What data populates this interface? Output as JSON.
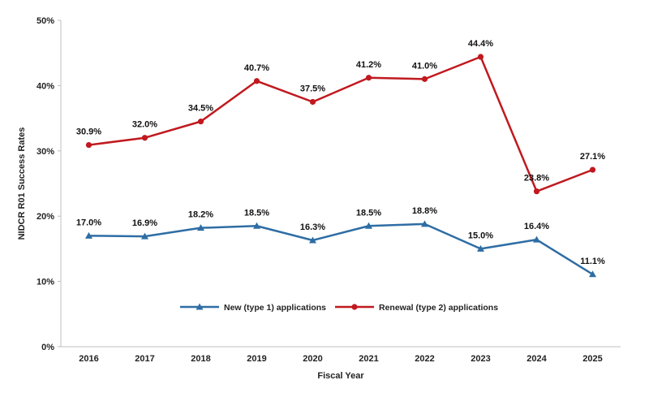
{
  "chart_data": {
    "type": "line",
    "xlabel": "Fiscal Year",
    "ylabel": "NIDCR R01 Success Rates",
    "ylim": [
      0,
      50
    ],
    "yticks": [
      0,
      10,
      20,
      30,
      40,
      50
    ],
    "ytick_labels": [
      "0%",
      "10%",
      "20%",
      "30%",
      "40%",
      "50%"
    ],
    "categories": [
      "2016",
      "2017",
      "2018",
      "2019",
      "2020",
      "2021",
      "2022",
      "2023",
      "2024",
      "2025"
    ],
    "grid": false,
    "legend_position": "bottom-center",
    "series": [
      {
        "name": "New (type 1) applications",
        "color": "#2E6DA4",
        "marker": "triangle",
        "values": [
          17.0,
          16.9,
          18.2,
          18.5,
          16.3,
          18.5,
          18.8,
          15.0,
          16.4,
          11.1
        ],
        "labels": [
          "17.0%",
          "16.9%",
          "18.2%",
          "18.5%",
          "16.3%",
          "18.5%",
          "18.8%",
          "15.0%",
          "16.4%",
          "11.1%"
        ]
      },
      {
        "name": "Renewal (type 2) applications",
        "color": "#C0191F",
        "marker": "circle",
        "values": [
          30.9,
          32.0,
          34.5,
          40.7,
          37.5,
          41.2,
          41.0,
          44.4,
          23.8,
          27.1
        ],
        "labels": [
          "30.9%",
          "32.0%",
          "34.5%",
          "40.7%",
          "37.5%",
          "41.2%",
          "41.0%",
          "44.4%",
          "23.8%",
          "27.1%"
        ]
      }
    ]
  }
}
